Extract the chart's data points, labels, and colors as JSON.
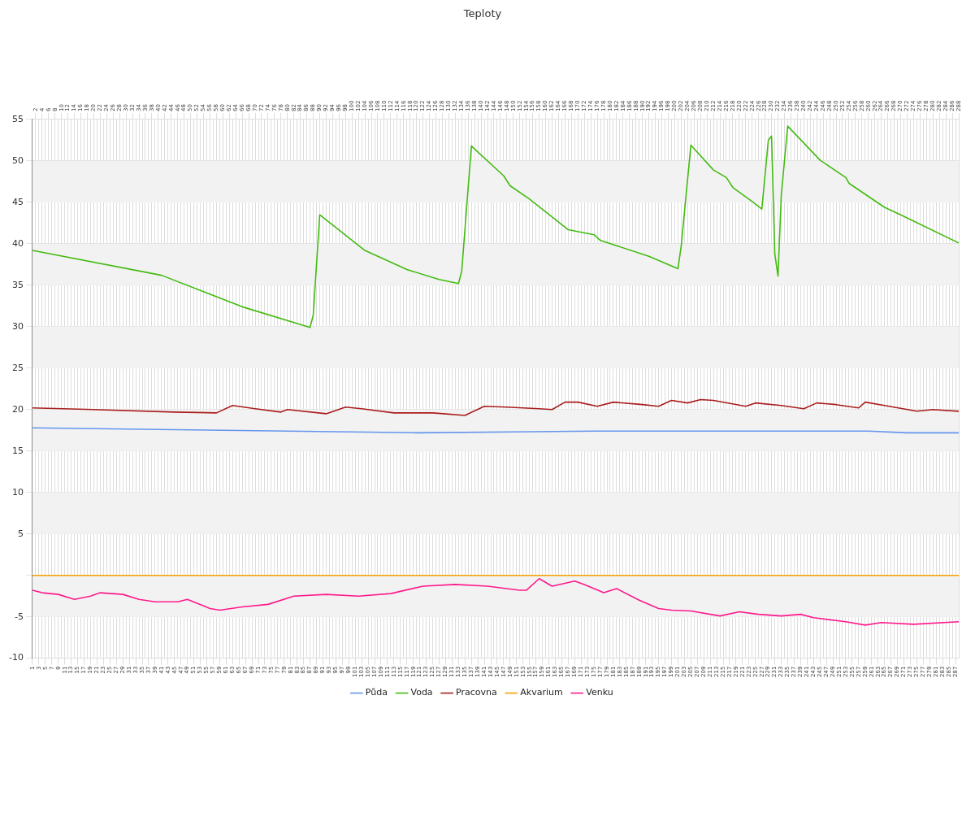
{
  "chart_data": {
    "type": "line",
    "title": "Teploty",
    "legend": "bottom",
    "grid": true,
    "marker": "none",
    "line_style": "solid",
    "xlim": [
      1,
      288
    ],
    "ylim": [
      -10,
      55
    ],
    "yticks": [
      -10,
      -5,
      {
        "value": 0,
        "label": null
      },
      5,
      10,
      15,
      20,
      25,
      30,
      35,
      40,
      45,
      50,
      55
    ],
    "xticks": [
      1,
      3,
      5,
      7,
      9,
      11,
      13,
      15,
      17,
      19,
      21,
      23,
      25,
      27,
      29,
      31,
      33,
      35,
      37,
      39,
      41,
      43,
      45,
      47,
      49,
      51,
      53,
      55,
      57,
      59,
      61,
      63,
      65,
      67,
      69,
      71,
      73,
      75,
      77,
      79,
      81,
      83,
      85,
      87,
      89,
      91,
      93,
      95,
      97,
      99,
      101,
      103,
      105,
      107,
      109,
      111,
      113,
      115,
      117,
      119,
      121,
      123,
      125,
      127,
      129,
      131,
      133,
      135,
      137,
      139,
      141,
      143,
      145,
      147,
      149,
      151,
      153,
      155,
      157,
      159,
      161,
      163,
      165,
      167,
      169,
      171,
      173,
      175,
      177,
      179,
      181,
      183,
      185,
      187,
      189,
      191,
      193,
      195,
      197,
      199,
      201,
      203,
      205,
      207,
      209,
      211,
      213,
      215,
      217,
      219,
      221,
      223,
      225,
      227,
      229,
      231,
      233,
      235,
      237,
      239,
      241,
      243,
      245,
      247,
      249,
      251,
      253,
      255,
      257,
      259,
      261,
      263,
      265,
      267,
      269,
      271,
      273,
      275,
      277,
      279,
      281,
      283,
      285,
      287
    ],
    "x2lim": [
      1,
      288
    ],
    "x2ticks": [
      2,
      4,
      6,
      8,
      10,
      12,
      14,
      16,
      18,
      20,
      22,
      24,
      26,
      28,
      30,
      32,
      34,
      36,
      38,
      40,
      42,
      44,
      46,
      48,
      50,
      52,
      54,
      56,
      58,
      60,
      62,
      64,
      66,
      68,
      70,
      72,
      74,
      76,
      78,
      80,
      82,
      84,
      86,
      88,
      90,
      92,
      94,
      96,
      98,
      100,
      102,
      104,
      106,
      108,
      110,
      112,
      114,
      116,
      118,
      120,
      122,
      124,
      126,
      128,
      130,
      132,
      134,
      136,
      138,
      140,
      142,
      144,
      146,
      148,
      150,
      152,
      154,
      156,
      158,
      160,
      162,
      164,
      166,
      168,
      170,
      172,
      174,
      176,
      178,
      180,
      182,
      184,
      186,
      188,
      190,
      192,
      194,
      196,
      198,
      200,
      202,
      204,
      206,
      208,
      210,
      212,
      214,
      216,
      218,
      220,
      222,
      224,
      226,
      228,
      230,
      232,
      234,
      236,
      238,
      240,
      242,
      244,
      246,
      248,
      250,
      252,
      254,
      256,
      258,
      260,
      262,
      264,
      266,
      268,
      270,
      272,
      274,
      276,
      278,
      280,
      282,
      284,
      286,
      288
    ],
    "bands": [
      {
        "axis": "y",
        "from": 45,
        "to": 50,
        "color": "#f2f2f2"
      },
      {
        "axis": "y",
        "from": 35,
        "to": 40,
        "color": "#f2f2f2"
      },
      {
        "axis": "y",
        "from": 25,
        "to": 30,
        "color": "#f2f2f2"
      },
      {
        "axis": "y",
        "from": 15,
        "to": 20,
        "color": "#f2f2f2"
      },
      {
        "axis": "y",
        "from": 5,
        "to": 10,
        "color": "#f2f2f2"
      },
      {
        "axis": "y",
        "from": -5,
        "to": 0,
        "color": "#f2f2f2"
      }
    ],
    "series": [
      {
        "name": "Půda",
        "color": "#6495ed",
        "x": [
          1,
          40,
          80,
          120,
          150,
          175,
          220,
          260,
          272,
          288
        ],
        "values": [
          17.8,
          17.6,
          17.4,
          17.2,
          17.3,
          17.4,
          17.4,
          17.4,
          17.2,
          17.2
        ]
      },
      {
        "name": "Voda",
        "color": "#44bb11",
        "x": [
          1,
          41,
          66,
          87,
          88,
          90,
          104,
          117,
          127,
          133,
          134,
          137,
          147,
          149,
          155,
          167,
          175,
          177,
          192,
          201,
          202,
          205,
          212,
          216,
          218,
          224,
          227,
          229,
          230,
          231,
          232,
          233,
          235,
          245,
          253,
          254,
          265,
          270,
          288
        ],
        "values": [
          39.2,
          36.2,
          32.4,
          29.9,
          31.4,
          43.5,
          39.2,
          36.9,
          35.7,
          35.2,
          36.7,
          51.8,
          48.2,
          47,
          45.4,
          41.7,
          41.1,
          40.4,
          38.5,
          37,
          39.7,
          51.9,
          48.9,
          48,
          46.8,
          45.1,
          44.2,
          52.5,
          53,
          38.8,
          36.1,
          45.8,
          54.2,
          50.1,
          48,
          47.3,
          44.4,
          43.5,
          40.1
        ]
      },
      {
        "name": "Pracovna",
        "color": "#aa1c1c",
        "x": [
          1,
          20,
          45,
          58,
          63,
          70,
          78,
          80,
          92,
          98,
          103,
          113,
          125,
          135,
          141,
          148,
          158,
          162,
          166,
          170,
          176,
          181,
          190,
          195,
          199,
          204,
          208,
          212,
          222,
          225,
          233,
          240,
          244,
          250,
          257,
          259,
          265,
          275,
          280,
          288
        ],
        "values": [
          20.2,
          20,
          19.7,
          19.6,
          20.5,
          20.1,
          19.7,
          20,
          19.5,
          20.3,
          20.1,
          19.6,
          19.6,
          19.3,
          20.4,
          20.3,
          20.1,
          20,
          20.9,
          20.9,
          20.4,
          20.9,
          20.6,
          20.4,
          21.1,
          20.8,
          21.2,
          21.1,
          20.4,
          20.8,
          20.5,
          20.1,
          20.8,
          20.6,
          20.2,
          20.9,
          20.5,
          19.8,
          20,
          19.8
        ]
      },
      {
        "name": "Akvarium",
        "color": "#f5a000",
        "x": [
          1,
          288
        ],
        "values": [
          0,
          0
        ]
      },
      {
        "name": "Venku",
        "color": "#ff1a8c",
        "x": [
          1,
          4,
          9,
          14,
          19,
          22,
          29,
          34,
          39,
          46,
          49,
          56,
          59,
          66,
          74,
          82,
          92,
          102,
          112,
          122,
          132,
          142,
          152,
          154,
          158,
          162,
          169,
          172,
          178,
          182,
          189,
          195,
          199,
          205,
          214,
          220,
          226,
          233,
          239,
          243,
          253,
          259,
          264,
          274,
          288
        ],
        "values": [
          -1.8,
          -2.1,
          -2.3,
          -2.9,
          -2.5,
          -2.1,
          -2.3,
          -2.9,
          -3.2,
          -3.2,
          -2.9,
          -4,
          -4.2,
          -3.8,
          -3.5,
          -2.5,
          -2.3,
          -2.5,
          -2.2,
          -1.3,
          -1.1,
          -1.3,
          -1.8,
          -1.8,
          -0.4,
          -1.3,
          -0.7,
          -1.1,
          -2.1,
          -1.6,
          -3,
          -4,
          -4.2,
          -4.3,
          -4.9,
          -4.4,
          -4.7,
          -4.9,
          -4.7,
          -5.1,
          -5.6,
          -6,
          -5.7,
          -5.9,
          -5.6
        ]
      }
    ]
  }
}
